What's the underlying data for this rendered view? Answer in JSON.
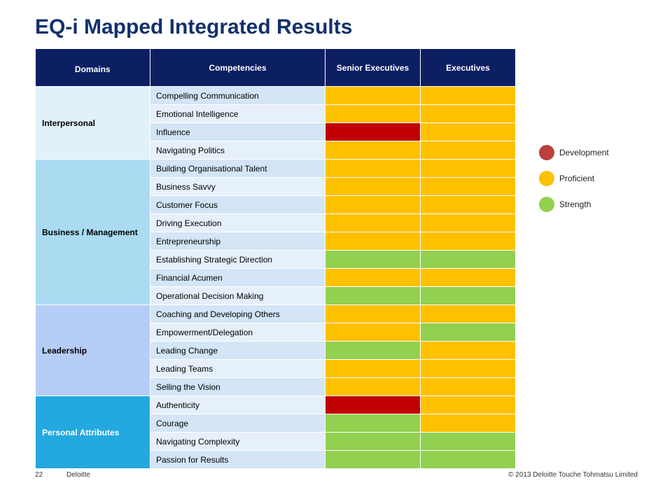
{
  "title": "EQ-i Mapped Integrated Results",
  "headers": {
    "domains": "Domains",
    "competencies": "Competencies",
    "senior": "Senior Executives",
    "executives": "Executives"
  },
  "colors": {
    "header_bg": "#0d1f63",
    "development": "#c00000",
    "proficient": "#ffc000",
    "strength": "#92d050"
  },
  "domains": [
    {
      "name": "Interpersonal",
      "color": "#e1f1fa",
      "rows": [
        {
          "competency": "Compelling Communication",
          "senior": "proficient",
          "executives": "proficient"
        },
        {
          "competency": "Emotional Intelligence",
          "senior": "proficient",
          "executives": "proficient"
        },
        {
          "competency": "Influence",
          "senior": "development",
          "executives": "proficient"
        },
        {
          "competency": "Navigating Politics",
          "senior": "proficient",
          "executives": "proficient"
        }
      ]
    },
    {
      "name": "Business / Management",
      "color": "#aadbf1",
      "rows": [
        {
          "competency": "Building Organisational Talent",
          "senior": "proficient",
          "executives": "proficient"
        },
        {
          "competency": "Business Savvy",
          "senior": "proficient",
          "executives": "proficient"
        },
        {
          "competency": "Customer Focus",
          "senior": "proficient",
          "executives": "proficient"
        },
        {
          "competency": "Driving Execution",
          "senior": "proficient",
          "executives": "proficient"
        },
        {
          "competency": "Entrepreneurship",
          "senior": "proficient",
          "executives": "proficient"
        },
        {
          "competency": "Establishing Strategic Direction",
          "senior": "strength",
          "executives": "strength"
        },
        {
          "competency": "Financial Acumen",
          "senior": "proficient",
          "executives": "proficient"
        },
        {
          "competency": "Operational Decision Making",
          "senior": "strength",
          "executives": "strength"
        }
      ]
    },
    {
      "name": "Leadership",
      "color": "#b6cdf7",
      "rows": [
        {
          "competency": "Coaching and Developing Others",
          "senior": "proficient",
          "executives": "proficient"
        },
        {
          "competency": "Empowerment/Delegation",
          "senior": "proficient",
          "executives": "strength"
        },
        {
          "competency": "Leading Change",
          "senior": "strength",
          "executives": "proficient"
        },
        {
          "competency": "Leading Teams",
          "senior": "proficient",
          "executives": "proficient"
        },
        {
          "competency": "Selling the Vision",
          "senior": "proficient",
          "executives": "proficient"
        }
      ]
    },
    {
      "name": "Personal Attributes",
      "color": "#23a9df",
      "text_color": "#ffffff",
      "rows": [
        {
          "competency": "Authenticity",
          "senior": "development",
          "executives": "proficient"
        },
        {
          "competency": "Courage",
          "senior": "strength",
          "executives": "proficient"
        },
        {
          "competency": "Navigating Complexity",
          "senior": "strength",
          "executives": "strength"
        },
        {
          "competency": "Passion for Results",
          "senior": "strength",
          "executives": "strength"
        }
      ]
    }
  ],
  "legend": [
    {
      "key": "development",
      "label": "Development",
      "color": "#b9403f"
    },
    {
      "key": "proficient",
      "label": "Proficient",
      "color": "#ffc000"
    },
    {
      "key": "strength",
      "label": "Strength",
      "color": "#92d050"
    }
  ],
  "footer": {
    "page_number": "22",
    "company": "Deloitte",
    "copyright": "© 2013 Deloitte Touche Tohmatsu Limited"
  }
}
